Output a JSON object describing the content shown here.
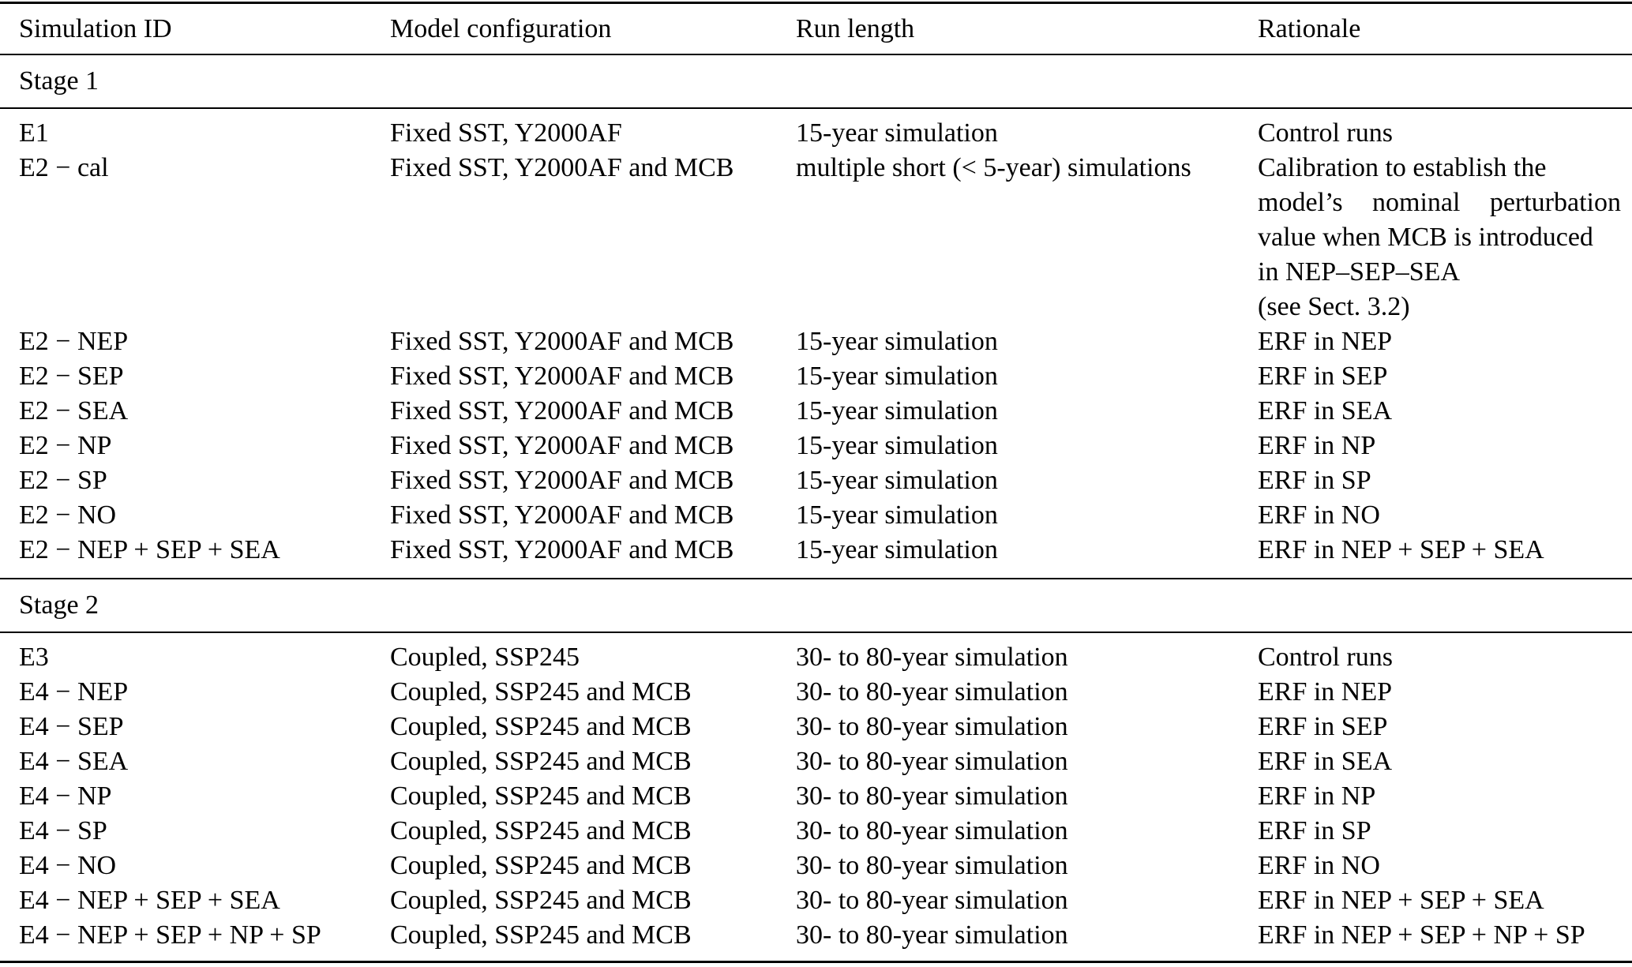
{
  "table": {
    "columns": [
      "Simulation ID",
      "Model configuration",
      "Run length",
      "Rationale"
    ],
    "sections": [
      {
        "label": "Stage 1",
        "rows": [
          {
            "id": "E1",
            "config": "Fixed SST, Y2000AF",
            "run": "15-year simulation",
            "rationale": [
              "Control runs"
            ]
          },
          {
            "id": "E2 − cal",
            "config": "Fixed SST, Y2000AF and MCB",
            "run": "multiple short (< 5-year) simulations",
            "rationale": [
              "Calibration to establish the",
              "model’s nominal perturbation",
              "value when MCB is introduced",
              "in NEP–SEP–SEA",
              "(see Sect. 3.2)"
            ]
          },
          {
            "id": "E2 − NEP",
            "config": "Fixed SST, Y2000AF and MCB",
            "run": "15-year simulation",
            "rationale": [
              "ERF in NEP"
            ]
          },
          {
            "id": "E2 − SEP",
            "config": "Fixed SST, Y2000AF and MCB",
            "run": "15-year simulation",
            "rationale": [
              "ERF in SEP"
            ]
          },
          {
            "id": "E2 − SEA",
            "config": "Fixed SST, Y2000AF and MCB",
            "run": "15-year simulation",
            "rationale": [
              "ERF in SEA"
            ]
          },
          {
            "id": "E2 − NP",
            "config": "Fixed SST, Y2000AF and MCB",
            "run": "15-year simulation",
            "rationale": [
              "ERF in NP"
            ]
          },
          {
            "id": "E2 − SP",
            "config": "Fixed SST, Y2000AF and MCB",
            "run": "15-year simulation",
            "rationale": [
              "ERF in SP"
            ]
          },
          {
            "id": "E2 − NO",
            "config": "Fixed SST, Y2000AF and MCB",
            "run": "15-year simulation",
            "rationale": [
              "ERF in NO"
            ]
          },
          {
            "id": "E2 − NEP + SEP + SEA",
            "config": "Fixed SST, Y2000AF and MCB",
            "run": "15-year simulation",
            "rationale": [
              "ERF in NEP + SEP + SEA"
            ]
          }
        ]
      },
      {
        "label": "Stage 2",
        "rows": [
          {
            "id": "E3",
            "config": "Coupled, SSP245",
            "run": "30- to 80-year simulation",
            "rationale": [
              "Control runs"
            ]
          },
          {
            "id": "E4 − NEP",
            "config": "Coupled, SSP245 and MCB",
            "run": "30- to 80-year simulation",
            "rationale": [
              "ERF in NEP"
            ]
          },
          {
            "id": "E4 − SEP",
            "config": "Coupled, SSP245 and MCB",
            "run": "30- to 80-year simulation",
            "rationale": [
              "ERF in SEP"
            ]
          },
          {
            "id": "E4 − SEA",
            "config": "Coupled, SSP245 and MCB",
            "run": "30- to 80-year simulation",
            "rationale": [
              "ERF in SEA"
            ]
          },
          {
            "id": "E4 − NP",
            "config": "Coupled, SSP245 and MCB",
            "run": "30- to 80-year simulation",
            "rationale": [
              "ERF in NP"
            ]
          },
          {
            "id": "E4 − SP",
            "config": "Coupled, SSP245 and MCB",
            "run": "30- to 80-year simulation",
            "rationale": [
              "ERF in SP"
            ]
          },
          {
            "id": "E4 − NO",
            "config": "Coupled, SSP245 and MCB",
            "run": "30- to 80-year simulation",
            "rationale": [
              "ERF in NO"
            ]
          },
          {
            "id": "E4 − NEP + SEP + SEA",
            "config": "Coupled, SSP245 and MCB",
            "run": "30- to 80-year simulation",
            "rationale": [
              "ERF in NEP + SEP + SEA"
            ]
          },
          {
            "id": "E4 − NEP + SEP + NP + SP",
            "config": "Coupled, SSP245 and MCB",
            "run": "30- to 80-year simulation",
            "rationale": [
              "ERF in NEP + SEP + NP + SP"
            ]
          }
        ]
      }
    ]
  }
}
